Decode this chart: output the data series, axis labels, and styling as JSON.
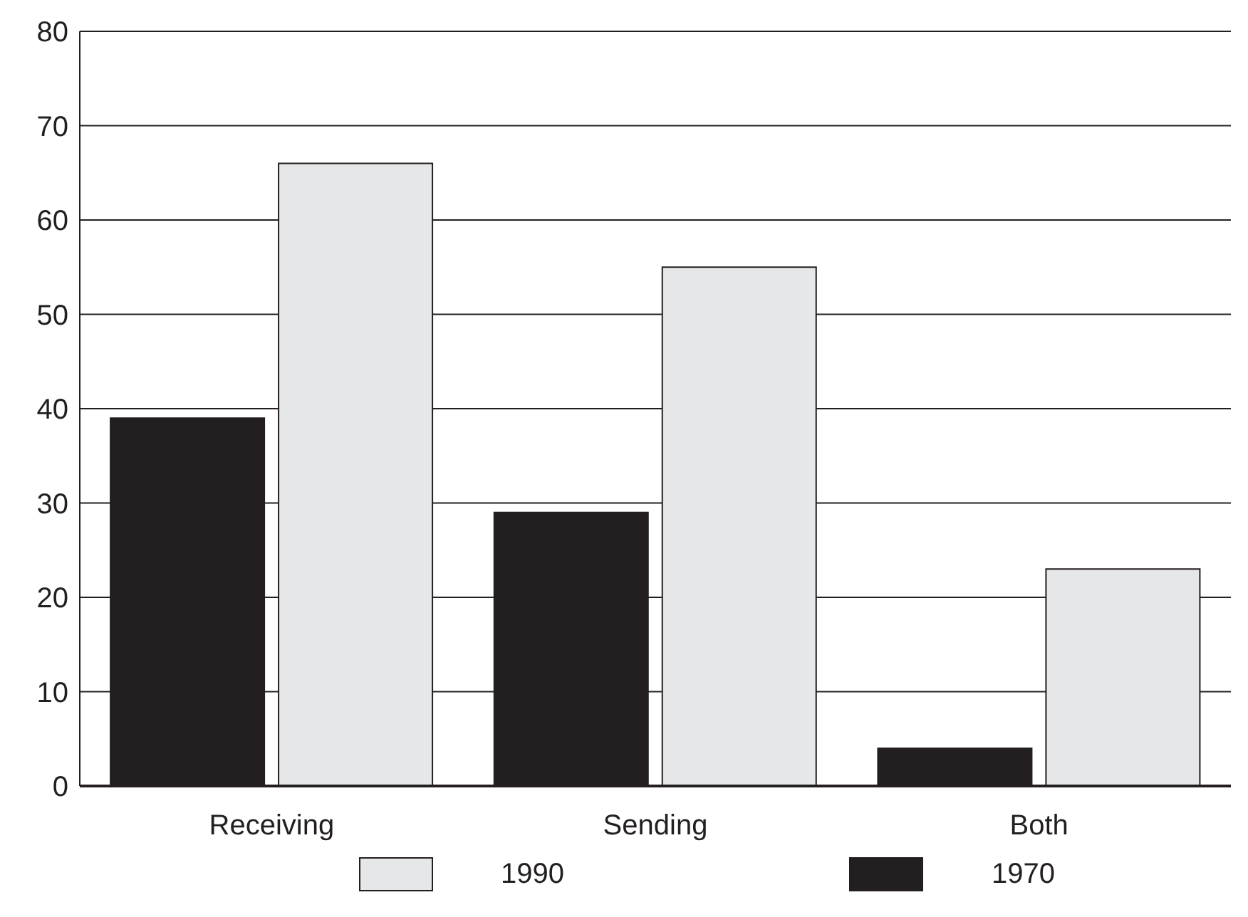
{
  "chart_data": {
    "type": "bar",
    "categories": [
      "Receiving",
      "Sending",
      "Both"
    ],
    "series": [
      {
        "name": "1970",
        "color": "#231f20",
        "values": [
          39,
          29,
          4
        ]
      },
      {
        "name": "1990",
        "color": "#e6e7e8",
        "values": [
          66,
          55,
          23
        ]
      }
    ],
    "ylim": [
      0,
      80
    ],
    "yticks": [
      0,
      10,
      20,
      30,
      40,
      50,
      60,
      70,
      80
    ],
    "grid": "y",
    "legend": "bottom"
  }
}
